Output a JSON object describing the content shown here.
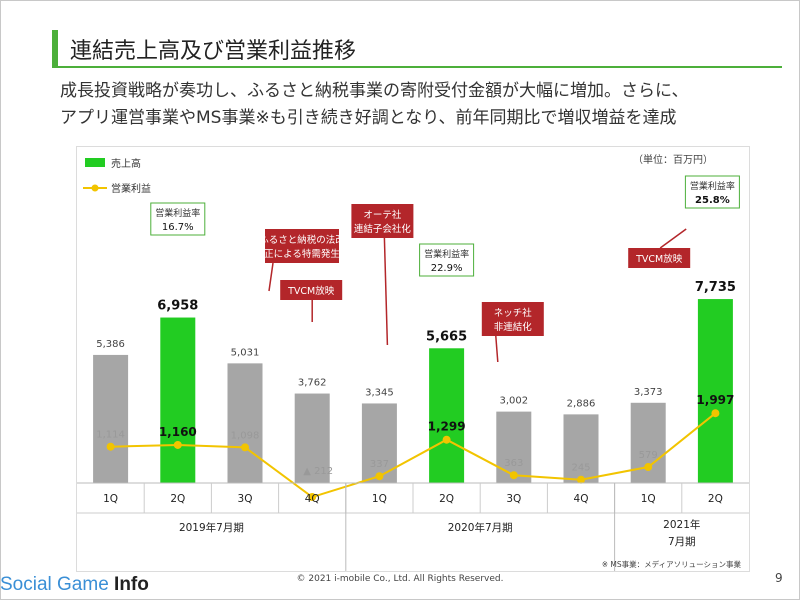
{
  "header": {
    "title": "連結売上高及び営業利益推移",
    "subtitle_line1": "成長投資戦略が奏功し、ふるさと納税事業の寄附受付金額が大幅に増加。さらに、",
    "subtitle_line2": "アプリ運営事業やMS事業※も引き続き好調となり、前年同期比で増収増益を達成"
  },
  "chart_data": {
    "type": "bar",
    "unit_label": "（単位：百万円）",
    "legend": [
      "売上高",
      "営業利益"
    ],
    "categories": [
      "1Q",
      "2Q",
      "3Q",
      "4Q",
      "1Q",
      "2Q",
      "3Q",
      "4Q",
      "1Q",
      "2Q"
    ],
    "period_groups": [
      {
        "label": "2019年7月期",
        "start": 0,
        "end": 3
      },
      {
        "label": "2020年7月期",
        "start": 4,
        "end": 7
      },
      {
        "label": "2021年\n7月期",
        "start": 8,
        "end": 9
      }
    ],
    "series": [
      {
        "name": "売上高",
        "type": "bar",
        "values": [
          5386,
          6958,
          5031,
          3762,
          3345,
          5665,
          3002,
          2886,
          3373,
          7735
        ],
        "labels": [
          "5,386",
          "6,958",
          "5,031",
          "3,762",
          "3,345",
          "5,665",
          "3,002",
          "2,886",
          "3,373",
          "7,735"
        ],
        "highlight": [
          false,
          true,
          false,
          false,
          false,
          true,
          false,
          false,
          false,
          true
        ]
      },
      {
        "name": "営業利益",
        "type": "line",
        "values": [
          1114,
          1160,
          1098,
          -212,
          337,
          1299,
          363,
          245,
          579,
          1997
        ],
        "labels": [
          "1,114",
          "1,160",
          "1,098",
          "▲ 212",
          "337",
          "1,299",
          "363",
          "245",
          "579",
          "1,997"
        ],
        "highlight": [
          false,
          true,
          false,
          false,
          false,
          true,
          false,
          false,
          false,
          true
        ]
      }
    ],
    "margin_boxes": [
      {
        "index": 1,
        "title": "営業利益率",
        "value": "16.7%"
      },
      {
        "index": 5,
        "title": "営業利益率",
        "value": "22.9%"
      },
      {
        "index": 9,
        "title": "営業利益率",
        "value": "25.8%"
      }
    ],
    "annotations": [
      {
        "index": 2,
        "lines": [
          "ふるさと納税の法改",
          "正による特需発生"
        ]
      },
      {
        "index": 3,
        "lines": [
          "TVCM放映"
        ]
      },
      {
        "index": 4,
        "lines": [
          "オーテ社",
          "連結子会社化"
        ]
      },
      {
        "index": 6,
        "lines": [
          "ネッチ社",
          "非連結化"
        ]
      },
      {
        "index": 8,
        "lines": [
          "TVCM放映"
        ]
      }
    ],
    "footnote": "※ MS事業：メディアソリューション事業",
    "colors": {
      "bar_normal": "#a6a6a6",
      "bar_highlight": "#22cc22",
      "line": "#f2c400",
      "callout_fill": "#b3262a",
      "margin_border": "#4caf3a"
    }
  },
  "footer": {
    "copyright": "© 2021 i-mobile Co., Ltd. All Rights Reserved.",
    "page": "9",
    "watermark_a": "Social Game ",
    "watermark_b": "Info"
  }
}
